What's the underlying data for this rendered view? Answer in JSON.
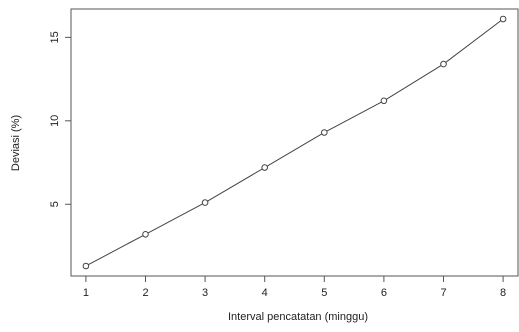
{
  "chart_data": {
    "type": "line",
    "title": "",
    "xlabel": "Interval pencatatan (minggu)",
    "ylabel": "Deviasi (%)",
    "x": [
      1,
      2,
      3,
      4,
      5,
      6,
      7,
      8
    ],
    "series": [
      {
        "values": [
          1.3,
          3.2,
          5.1,
          7.2,
          9.3,
          11.2,
          13.4,
          16.1
        ],
        "marker": "open-circle",
        "color": "#444444"
      }
    ],
    "xticks": [
      1,
      2,
      3,
      4,
      5,
      6,
      7,
      8
    ],
    "yticks": [
      5,
      10,
      15
    ],
    "xlim": [
      0.75,
      8.25
    ],
    "ylim": [
      0.7,
      16.7
    ],
    "grid": false,
    "legend": "none"
  }
}
